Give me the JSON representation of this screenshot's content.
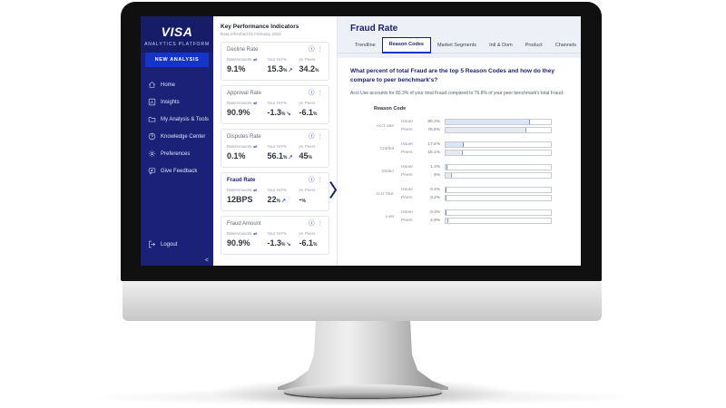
{
  "colors": {
    "brand_navy": "#1a1f71",
    "accent_blue": "#1434cb",
    "issuer_fill": "#dbe5f7",
    "peers_fill": "#e8e9ed"
  },
  "icons": {
    "info": "ⓘ",
    "kebab": "⋮",
    "swap": "⇄",
    "up_arrow": "↗",
    "down_arrow": "↘",
    "collapse": "<"
  },
  "sidebar": {
    "brand": "VISA",
    "platform": "ANALYTICS PLATFORM",
    "new_analysis": "NEW ANALYSIS",
    "items": [
      {
        "icon": "home-icon",
        "label": "Home"
      },
      {
        "icon": "insights-icon",
        "label": "Insights"
      },
      {
        "icon": "analysis-tools-icon",
        "label": "My Analysis & Tools"
      },
      {
        "icon": "knowledge-center-icon",
        "label": "Knowledge Center"
      },
      {
        "icon": "preferences-icon",
        "label": "Preferences"
      },
      {
        "icon": "feedback-icon",
        "label": "Give Feedback"
      }
    ],
    "logout": "Logout"
  },
  "kpi": {
    "title": "Key Performance Indicators",
    "subtitle": "Data refreshed 01 February 2023",
    "col_labels": {
      "rate": "Rate/Amounts",
      "yoy": "Your YoY%",
      "peers": "vs. Peers"
    },
    "cards": [
      {
        "name": "Decline Rate",
        "rate": "9.1%",
        "yoy": "15.3",
        "yoy_suffix": "%",
        "arrow": "↗",
        "peers": "34.2",
        "peers_suffix": "%"
      },
      {
        "name": "Approval Rate",
        "rate": "90.9%",
        "yoy": "-1.3",
        "yoy_suffix": "%",
        "arrow": "↘",
        "peers": "-6.1",
        "peers_suffix": "%"
      },
      {
        "name": "Disputes Rate",
        "rate": "0.1%",
        "yoy": "56.1",
        "yoy_suffix": "%",
        "arrow": "↗",
        "peers": "45",
        "peers_suffix": "%"
      },
      {
        "name": "Fraud Rate",
        "rate": "12BPS",
        "yoy": "22",
        "yoy_suffix": "%",
        "arrow": "↗",
        "peers": "-",
        "peers_suffix": "%"
      },
      {
        "name": "Fraud Amount",
        "rate": "90.9%",
        "yoy": "-1.3",
        "yoy_suffix": "%",
        "arrow": "↘",
        "peers": "-6.1",
        "peers_suffix": "%"
      }
    ]
  },
  "panel": {
    "title": "Fraud Rate",
    "tabs": [
      "Trendline",
      "Reason Codes",
      "Market Segments",
      "Intl & Dom",
      "Product",
      "Channels"
    ],
    "active_tab": "Reason Codes",
    "question": "What percent of total Fraud are the top 5 Reason Codes and how do they compare to peer benchmark's?",
    "insight": "Acct Use accounts for 80.3% of your total Fraud compared to 76.8% of your peer benchmark's total Fraud.",
    "chart_label": "Reason Code"
  },
  "chart_data": {
    "type": "bar",
    "orientation": "horizontal",
    "title": "Reason Code",
    "categories": [
      "Acct Use",
      "Cntrfeit",
      "Stolen",
      "Acct Tkvr",
      "Lost"
    ],
    "series": [
      {
        "name": "Issuer",
        "values": [
          80.3,
          17.4,
          1.4,
          0.4,
          0.3
        ],
        "labels": [
          "80.3%",
          "17.4%",
          "1.4%",
          "0.4%",
          "0.3%"
        ],
        "color": "#dbe5f7"
      },
      {
        "name": "Peers",
        "values": [
          76.8,
          16.1,
          6,
          0.2,
          2.9
        ],
        "labels": [
          "76.8%",
          "16.1%",
          "6%",
          "0.2%",
          "2.9%"
        ],
        "color": "#e8e9ed"
      }
    ],
    "xlim": [
      0,
      100
    ],
    "grid": false,
    "legend": "inline-row-labels"
  }
}
